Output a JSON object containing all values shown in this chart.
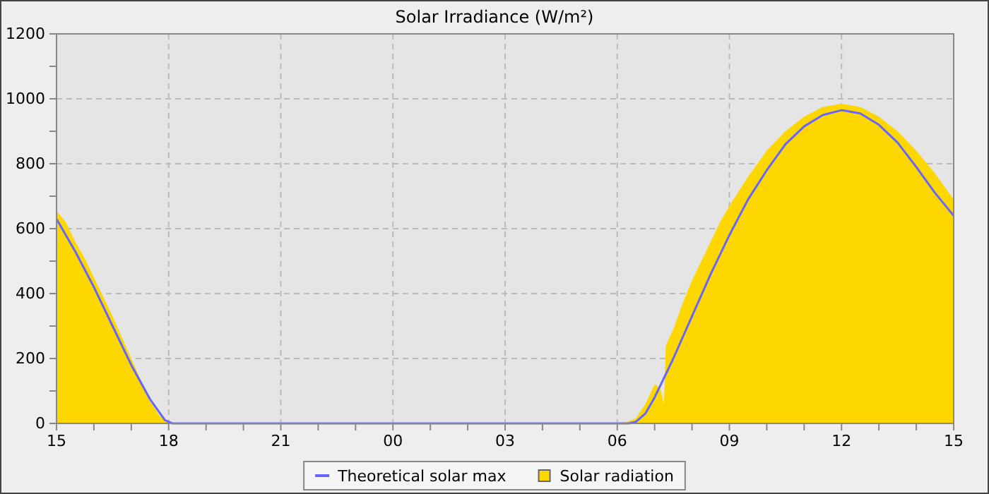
{
  "chart_data": {
    "type": "area",
    "title": "Solar Irradiance (W/m²)",
    "xlim": [
      15,
      39
    ],
    "ylim": [
      0,
      1200
    ],
    "xticks": [
      {
        "value": 15,
        "label": "15"
      },
      {
        "value": 16,
        "label": null
      },
      {
        "value": 17,
        "label": null
      },
      {
        "value": 18,
        "label": "18"
      },
      {
        "value": 19,
        "label": null
      },
      {
        "value": 20,
        "label": null
      },
      {
        "value": 21,
        "label": "21"
      },
      {
        "value": 22,
        "label": null
      },
      {
        "value": 23,
        "label": null
      },
      {
        "value": 24,
        "label": "00"
      },
      {
        "value": 25,
        "label": null
      },
      {
        "value": 26,
        "label": null
      },
      {
        "value": 27,
        "label": "03"
      },
      {
        "value": 28,
        "label": null
      },
      {
        "value": 29,
        "label": null
      },
      {
        "value": 30,
        "label": "06"
      },
      {
        "value": 31,
        "label": null
      },
      {
        "value": 32,
        "label": null
      },
      {
        "value": 33,
        "label": "09"
      },
      {
        "value": 34,
        "label": null
      },
      {
        "value": 35,
        "label": null
      },
      {
        "value": 36,
        "label": "12"
      },
      {
        "value": 37,
        "label": null
      },
      {
        "value": 38,
        "label": null
      },
      {
        "value": 39,
        "label": "15"
      }
    ],
    "yticks": [
      0,
      {
        "value": 100,
        "label": null
      },
      200,
      {
        "value": 300,
        "label": null
      },
      400,
      {
        "value": 500,
        "label": null
      },
      600,
      {
        "value": 700,
        "label": null
      },
      800,
      {
        "value": 900,
        "label": null
      },
      1000,
      {
        "value": 1100,
        "label": null
      },
      1200
    ],
    "grid": true,
    "legend": "bottom",
    "series": [
      {
        "name": "Solar radiation",
        "color": "#ffd700",
        "x": [
          15,
          15.25,
          15.5,
          15.75,
          16,
          16.25,
          16.5,
          16.75,
          17,
          17.25,
          17.5,
          17.75,
          18,
          18.25,
          30,
          30.25,
          30.5,
          30.75,
          31,
          31.15,
          31.25,
          31.3,
          31.5,
          31.75,
          32,
          32.25,
          32.5,
          32.75,
          33,
          33.5,
          34,
          34.5,
          35,
          35.5,
          36,
          36.5,
          37,
          37.5,
          38,
          38.5,
          39
        ],
        "values": [
          655,
          620,
          560,
          510,
          450,
          390,
          330,
          265,
          200,
          135,
          70,
          25,
          5,
          0,
          0,
          5,
          15,
          60,
          120,
          110,
          60,
          240,
          290,
          370,
          440,
          500,
          560,
          620,
          670,
          760,
          840,
          900,
          945,
          975,
          985,
          975,
          945,
          900,
          840,
          770,
          690
        ]
      },
      {
        "name": "Theoretical solar max",
        "type": "line",
        "color": "#6666ff",
        "x": [
          15,
          15.5,
          16,
          16.5,
          17,
          17.5,
          17.9,
          18.1,
          30.3,
          30.5,
          30.75,
          31,
          31.5,
          32,
          32.5,
          33,
          33.5,
          34,
          34.5,
          35,
          35.5,
          36,
          36.5,
          37,
          37.5,
          38,
          38.5,
          39
        ],
        "values": [
          630,
          530,
          420,
          300,
          180,
          75,
          10,
          0,
          0,
          5,
          30,
          80,
          200,
          330,
          460,
          580,
          690,
          780,
          860,
          915,
          950,
          965,
          955,
          920,
          865,
          790,
          710,
          640
        ]
      }
    ]
  }
}
